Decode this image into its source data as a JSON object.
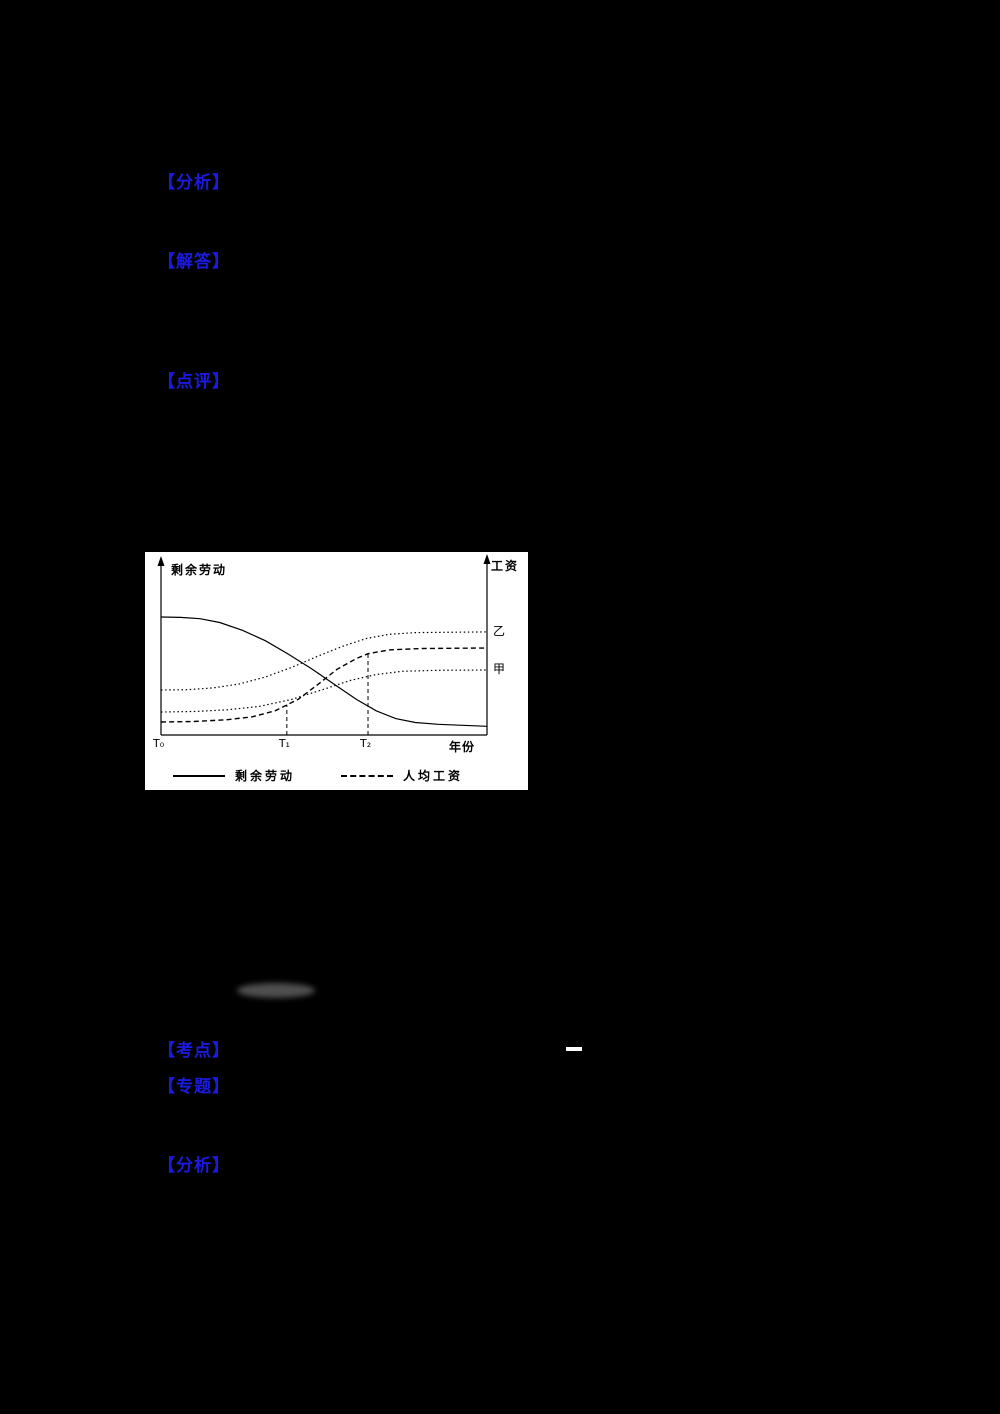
{
  "page": {
    "background_color": "#000000",
    "accent_color": "#1a1ae0",
    "labels": {
      "analysis_1": "【分析】",
      "answer": "【解答】",
      "comment": "【点评】",
      "exam_point": "【考点】",
      "topic": "【专题】",
      "analysis_2": "【分析】"
    }
  },
  "chart_data": {
    "type": "line",
    "title": "",
    "left_ylabel": "剩余劳动",
    "right_ylabel": "工资",
    "xlabel": "年份",
    "x_ticks": [
      {
        "label": "T₀",
        "x": 0
      },
      {
        "label": "T₁",
        "x": 0.386
      },
      {
        "label": "T₂",
        "x": 0.635
      }
    ],
    "right_labels": [
      {
        "text": "乙",
        "value": 0.596
      },
      {
        "text": "甲",
        "value": 0.376
      }
    ],
    "axis_ranges": {
      "x": "T₀ → 年份 (qualitative time)",
      "y": "qualitative 0–1 (no numeric scale shown)"
    },
    "grid": false,
    "legend_position": "below-axis",
    "legend": [
      {
        "label": "剩余劳动",
        "style": "solid"
      },
      {
        "label": "人均工资",
        "style": "dashed"
      }
    ],
    "guides": [
      {
        "x": 0.386,
        "y": 0.175
      },
      {
        "x": 0.635,
        "y": 0.47
      }
    ],
    "series": [
      {
        "name": "剩余劳动",
        "style": "solid",
        "points": [
          [
            0,
            0.682
          ],
          [
            0.06,
            0.68
          ],
          [
            0.12,
            0.672
          ],
          [
            0.18,
            0.65
          ],
          [
            0.25,
            0.605
          ],
          [
            0.32,
            0.545
          ],
          [
            0.39,
            0.468
          ],
          [
            0.46,
            0.385
          ],
          [
            0.53,
            0.295
          ],
          [
            0.6,
            0.205
          ],
          [
            0.66,
            0.14
          ],
          [
            0.72,
            0.095
          ],
          [
            0.78,
            0.072
          ],
          [
            0.85,
            0.062
          ],
          [
            1,
            0.05
          ]
        ]
      },
      {
        "name": "乙(工资)",
        "style": "dotted",
        "points": [
          [
            0,
            0.26
          ],
          [
            0.08,
            0.262
          ],
          [
            0.16,
            0.272
          ],
          [
            0.24,
            0.295
          ],
          [
            0.32,
            0.335
          ],
          [
            0.4,
            0.39
          ],
          [
            0.48,
            0.455
          ],
          [
            0.56,
            0.515
          ],
          [
            0.63,
            0.558
          ],
          [
            0.7,
            0.582
          ],
          [
            0.78,
            0.592
          ],
          [
            1,
            0.596
          ]
        ]
      },
      {
        "name": "人均工资",
        "style": "dashed",
        "points": [
          [
            0,
            0.075
          ],
          [
            0.1,
            0.078
          ],
          [
            0.2,
            0.088
          ],
          [
            0.28,
            0.105
          ],
          [
            0.35,
            0.14
          ],
          [
            0.42,
            0.205
          ],
          [
            0.48,
            0.29
          ],
          [
            0.54,
            0.38
          ],
          [
            0.6,
            0.443
          ],
          [
            0.635,
            0.47
          ],
          [
            0.7,
            0.492
          ],
          [
            0.8,
            0.5
          ],
          [
            1,
            0.503
          ]
        ]
      },
      {
        "name": "甲(工资)",
        "style": "dotted",
        "points": [
          [
            0,
            0.133
          ],
          [
            0.1,
            0.136
          ],
          [
            0.2,
            0.145
          ],
          [
            0.3,
            0.165
          ],
          [
            0.4,
            0.205
          ],
          [
            0.5,
            0.265
          ],
          [
            0.58,
            0.315
          ],
          [
            0.66,
            0.35
          ],
          [
            0.74,
            0.368
          ],
          [
            0.85,
            0.374
          ],
          [
            1,
            0.376
          ]
        ]
      }
    ]
  }
}
